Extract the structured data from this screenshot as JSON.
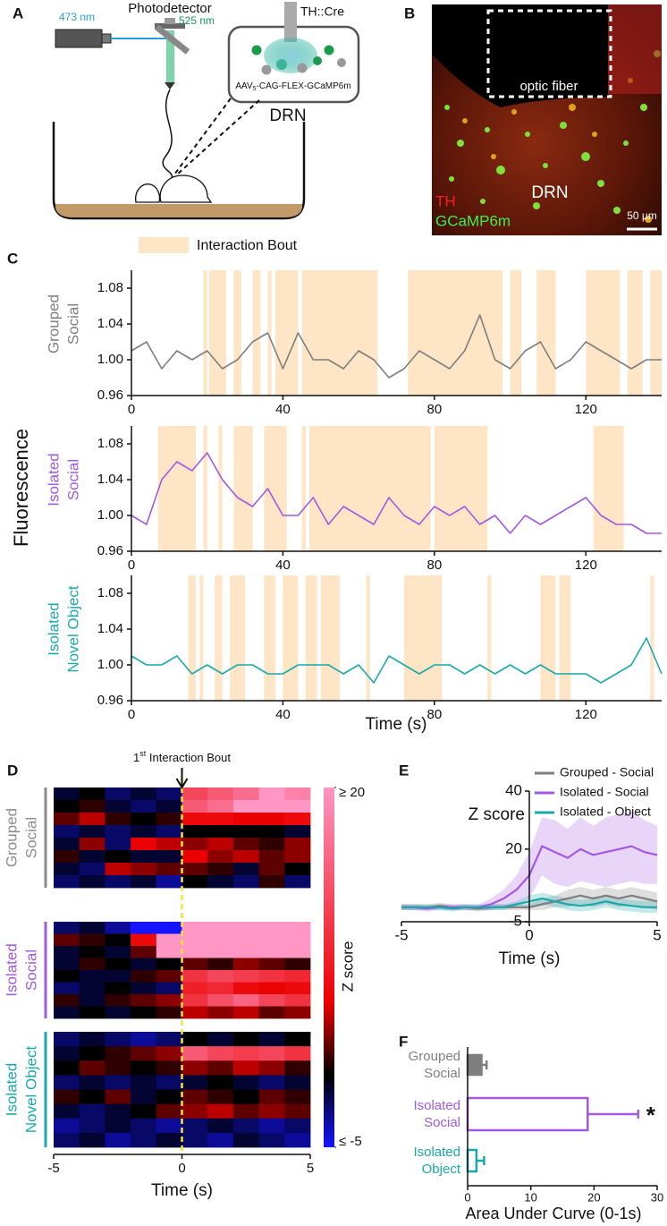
{
  "panel_labels": [
    "A",
    "B",
    "C",
    "D",
    "E",
    "F"
  ],
  "panel_a": {
    "photodetector": "Photodetector",
    "laser": "473 nm",
    "emission": "525 nm",
    "mouse_line": "TH::Cre",
    "virus": {
      "prefix": "AAV",
      "sub": "5",
      "suffix": "-CAG-FLEX-GCaMP6m"
    },
    "region": "DRN"
  },
  "panel_b": {
    "fiber": "optic fiber",
    "region": "DRN",
    "stain_1": "TH",
    "stain_2": "GCaMP6m",
    "scale": "50 µm"
  },
  "chart_data": [
    {
      "type": "line",
      "legend": "Interaction Bout",
      "bout_color": "#fde5c6",
      "ylabel": "Fluorescence",
      "xlabel": "Time (s)",
      "xlim": [
        0,
        140
      ],
      "xticks": [
        0,
        40,
        80,
        120
      ],
      "ylim": [
        0.96,
        1.1
      ],
      "yticks": [
        0.96,
        {
          "value": 1,
          "label": "1.00"
        },
        1.04,
        1.08
      ],
      "x": [
        0,
        4,
        8,
        12,
        16,
        20,
        24,
        28,
        32,
        36,
        40,
        44,
        48,
        52,
        56,
        60,
        64,
        68,
        72,
        76,
        80,
        84,
        88,
        92,
        96,
        100,
        104,
        108,
        112,
        116,
        120,
        124,
        128,
        132,
        136,
        140
      ],
      "subplots": [
        {
          "name": [
            "Grouped",
            "Social"
          ],
          "color": "#7f7f7f",
          "bouts": [
            [
              19,
              20
            ],
            [
              20.5,
              25
            ],
            [
              27,
              29
            ],
            [
              32,
              34
            ],
            [
              36,
              37
            ],
            [
              38,
              44
            ],
            [
              45,
              65
            ],
            [
              73,
              98
            ],
            [
              100,
              103
            ],
            [
              107,
              112
            ],
            [
              120,
              129
            ],
            [
              131,
              135
            ],
            [
              137,
              140
            ]
          ],
          "values": [
            1.01,
            1.02,
            0.99,
            1.01,
            1.0,
            1.01,
            0.99,
            1.0,
            1.02,
            1.03,
            0.99,
            1.03,
            1.0,
            1.0,
            0.99,
            1.01,
            1.0,
            0.98,
            0.99,
            1.01,
            1.0,
            0.99,
            1.01,
            1.05,
            1.0,
            0.99,
            1.01,
            1.02,
            0.99,
            1.0,
            1.02,
            1.01,
            1.0,
            0.99,
            1.0,
            1.0
          ]
        },
        {
          "name": [
            "Isolated",
            "Social"
          ],
          "color": "#a259e0",
          "bouts": [
            [
              7,
              17
            ],
            [
              19,
              20
            ],
            [
              23,
              24
            ],
            [
              27,
              32
            ],
            [
              35,
              41
            ],
            [
              45,
              46
            ],
            [
              47,
              79
            ],
            [
              80,
              94
            ],
            [
              122,
              130
            ]
          ],
          "values": [
            1.0,
            0.99,
            1.04,
            1.06,
            1.05,
            1.07,
            1.04,
            1.02,
            1.01,
            1.03,
            1.0,
            1.0,
            1.02,
            0.99,
            1.01,
            1.0,
            0.99,
            1.02,
            1.0,
            0.99,
            1.01,
            1.0,
            1.01,
            0.99,
            1.0,
            0.98,
            1.0,
            0.99,
            1.0,
            1.01,
            1.02,
            1.0,
            0.99,
            0.99,
            0.98,
            0.98
          ]
        },
        {
          "name": [
            "Isolated",
            "Novel Object"
          ],
          "color": "#1aa8ad",
          "bouts": [
            [
              15,
              17
            ],
            [
              18,
              19
            ],
            [
              22,
              24
            ],
            [
              26,
              30
            ],
            [
              35,
              38
            ],
            [
              40,
              44
            ],
            [
              46,
              49
            ],
            [
              50,
              55
            ],
            [
              62,
              63
            ],
            [
              72,
              82
            ],
            [
              94,
              95
            ],
            [
              108,
              112
            ],
            [
              113,
              116
            ],
            [
              137,
              138
            ]
          ],
          "values": [
            1.01,
            1.0,
            1.0,
            1.01,
            0.99,
            1.0,
            0.99,
            1.0,
            1.0,
            0.99,
            0.99,
            1.0,
            1.0,
            1.0,
            0.99,
            1.0,
            0.98,
            1.01,
            1.0,
            0.99,
            1.0,
            1.0,
            0.99,
            1.0,
            0.99,
            1.0,
            0.99,
            1.0,
            0.99,
            0.99,
            0.99,
            0.98,
            0.99,
            1.0,
            1.03,
            0.99
          ]
        }
      ]
    },
    {
      "type": "heatmap",
      "xlim": [
        -5,
        5
      ],
      "xticks": [
        -5,
        0,
        5
      ],
      "xlabel": "Time (s)",
      "annotation": {
        "num": "1",
        "sup": "st",
        "text": " Interaction Bout"
      },
      "clabel": "Z score",
      "clim": [
        -5,
        20
      ],
      "cticks": [
        {
          "value": -5,
          "label": "≤ -5"
        },
        {
          "value": 20,
          "label": "≥ 20"
        }
      ],
      "groups": [
        {
          "name": [
            "Grouped",
            "Social"
          ],
          "color": "#8c8c8c",
          "rows": [
            [
              -1,
              0,
              -2,
              -1,
              -2,
              12,
              14,
              16,
              20,
              18
            ],
            [
              0,
              1,
              -1,
              -2,
              -1,
              14,
              16,
              20,
              20,
              20
            ],
            [
              2,
              4,
              1,
              0,
              1,
              6,
              6,
              5,
              5,
              6
            ],
            [
              -2,
              -1,
              -2,
              -1,
              -2,
              0,
              0,
              0,
              0,
              -1
            ],
            [
              -1,
              3,
              -2,
              5,
              4,
              3,
              4,
              2,
              1,
              3
            ],
            [
              1,
              -1,
              0,
              -1,
              -1,
              5,
              3,
              4,
              2,
              3
            ],
            [
              -1,
              -2,
              4,
              3,
              2,
              2,
              1,
              -1,
              2,
              0
            ],
            [
              -2,
              -1,
              -2,
              -1,
              -3,
              0,
              -1,
              -2,
              1,
              -2
            ]
          ]
        },
        {
          "name": [
            "Isolated",
            "Social"
          ],
          "color": "#a259e0",
          "rows": [
            [
              -2,
              -1,
              -3,
              -5,
              -5,
              20,
              20,
              20,
              20,
              20
            ],
            [
              2,
              1,
              0,
              6,
              20,
              20,
              20,
              20,
              20,
              20
            ],
            [
              -1,
              0,
              -1,
              2,
              20,
              20,
              20,
              20,
              20,
              20
            ],
            [
              -1,
              1,
              0,
              -1,
              0,
              2,
              1,
              3,
              2,
              1
            ],
            [
              0,
              -1,
              -1,
              1,
              2,
              10,
              12,
              11,
              10,
              9
            ],
            [
              -2,
              -1,
              0,
              -1,
              -2,
              8,
              9,
              6,
              5,
              6
            ],
            [
              1,
              -1,
              1,
              2,
              3,
              10,
              13,
              15,
              12,
              10
            ],
            [
              -1,
              0,
              -1,
              0,
              1,
              4,
              3,
              4,
              2,
              3
            ]
          ]
        },
        {
          "name": [
            "Isolated",
            "Novel Object"
          ],
          "color": "#1aa8ad",
          "rows": [
            [
              -2,
              -1,
              -2,
              -3,
              -2,
              0,
              -1,
              0,
              -1,
              0
            ],
            [
              -1,
              0,
              1,
              2,
              3,
              14,
              12,
              11,
              12,
              10
            ],
            [
              0,
              2,
              1,
              0,
              1,
              3,
              2,
              4,
              3,
              1
            ],
            [
              -2,
              -1,
              -2,
              -1,
              -2,
              -1,
              0,
              -1,
              -2,
              -1
            ],
            [
              1,
              0,
              2,
              -1,
              0,
              2,
              1,
              0,
              2,
              1
            ],
            [
              -1,
              -2,
              -1,
              0,
              2,
              3,
              4,
              2,
              3,
              2
            ],
            [
              -3,
              -2,
              -1,
              -2,
              -3,
              -2,
              -1,
              -2,
              -3,
              -2
            ],
            [
              -2,
              -1,
              -3,
              -2,
              -1,
              -2,
              -3,
              -1,
              -2,
              -3
            ]
          ]
        }
      ]
    },
    {
      "type": "line",
      "ylabel": "Z score",
      "xlabel": "Time (s)",
      "legend_position": "upper right",
      "xlim": [
        -5,
        5
      ],
      "xticks": [
        -5,
        0,
        5
      ],
      "ylim": [
        -5,
        40
      ],
      "yticks": [
        -5,
        20,
        40
      ],
      "x": [
        -5,
        -4.5,
        -4,
        -3.5,
        -3,
        -2.5,
        -2,
        -1.5,
        -1,
        -0.5,
        0,
        0.5,
        1,
        1.5,
        2,
        2.5,
        3,
        3.5,
        4,
        4.5,
        5
      ],
      "series": [
        {
          "name": "Grouped - Social",
          "color": "#7f7f7f",
          "values": [
            0,
            0,
            0,
            0.5,
            0,
            0,
            -0.5,
            0,
            0,
            0,
            0,
            1,
            2,
            3,
            4,
            3,
            4,
            3,
            4,
            3,
            2
          ],
          "errors": [
            1,
            1,
            1,
            1,
            1,
            1,
            1,
            1,
            1,
            1,
            1,
            2,
            2,
            3,
            3,
            3,
            3,
            3,
            3,
            3,
            3
          ]
        },
        {
          "name": "Isolated - Social",
          "color": "#a259e0",
          "values": [
            0,
            0,
            -0.5,
            0,
            0,
            0,
            0,
            1,
            3,
            6,
            11,
            21,
            19,
            17,
            20,
            18,
            19,
            20,
            21,
            19,
            18
          ],
          "errors": [
            1,
            1,
            1,
            1,
            1,
            1,
            1,
            2,
            3,
            5,
            8,
            10,
            11,
            10,
            11,
            10,
            12,
            12,
            12,
            11,
            10
          ]
        },
        {
          "name": "Isolated - Object",
          "color": "#1aa8ad",
          "values": [
            0,
            0,
            0,
            0,
            -0.5,
            0,
            0,
            0,
            0,
            1,
            2,
            3,
            2,
            1,
            0.5,
            1,
            2,
            1,
            0.5,
            0,
            0
          ],
          "errors": [
            1,
            1,
            1,
            1,
            1,
            1,
            1,
            1,
            1,
            1,
            2,
            2,
            2,
            2,
            2,
            2,
            2,
            2,
            2,
            2,
            2
          ]
        }
      ]
    },
    {
      "type": "bar",
      "orientation": "horizontal",
      "xlabel": "Area Under Curve (0-1s)",
      "xlim": [
        0,
        30
      ],
      "xticks": [
        0,
        10,
        20,
        30
      ],
      "categories": [
        [
          "Grouped",
          "Social"
        ],
        [
          "Isolated",
          "Social"
        ],
        [
          "Isolated",
          "Object"
        ]
      ],
      "values": [
        2.2,
        19,
        1.4
      ],
      "errors": [
        0.8,
        8,
        1.2
      ],
      "colors": [
        "#7f7f7f",
        "#a259e0",
        "#1aa8ad"
      ],
      "filled": [
        true,
        false,
        false
      ],
      "significance": [
        null,
        "*",
        null
      ]
    }
  ]
}
